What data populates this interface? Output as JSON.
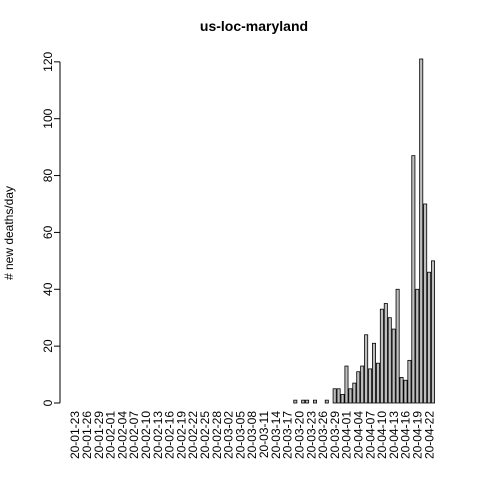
{
  "chart_data": {
    "type": "bar",
    "title": "us-loc-maryland",
    "y_label": "# new deaths/day",
    "categories": [
      "20-01-23",
      null,
      null,
      "20-01-26",
      null,
      null,
      "20-01-29",
      null,
      null,
      "20-02-01",
      null,
      null,
      "20-02-04",
      null,
      null,
      "20-02-07",
      null,
      null,
      "20-02-10",
      null,
      null,
      "20-02-13",
      null,
      null,
      "20-02-16",
      null,
      null,
      "20-02-19",
      null,
      null,
      "20-02-22",
      null,
      null,
      "20-02-25",
      null,
      null,
      "20-02-28",
      null,
      null,
      "20-03-02",
      null,
      null,
      "20-03-05",
      null,
      null,
      "20-03-08",
      null,
      null,
      "20-03-11",
      null,
      null,
      "20-03-14",
      null,
      null,
      "20-03-17",
      null,
      null,
      "20-03-20",
      null,
      null,
      "20-03-23",
      null,
      null,
      "20-03-26",
      null,
      null,
      "20-03-29",
      null,
      null,
      "20-04-01",
      null,
      null,
      "20-04-04",
      null,
      null,
      "20-04-07",
      null,
      null,
      "20-04-10",
      null,
      null,
      "20-04-13",
      null,
      null,
      "20-04-16",
      null,
      null,
      "20-04-19",
      null,
      null,
      "20-04-22",
      null
    ],
    "values": [
      0,
      0,
      0,
      0,
      0,
      0,
      0,
      0,
      0,
      0,
      0,
      0,
      0,
      0,
      0,
      0,
      0,
      0,
      0,
      0,
      0,
      0,
      0,
      0,
      0,
      0,
      0,
      0,
      0,
      0,
      0,
      0,
      0,
      0,
      0,
      0,
      0,
      0,
      0,
      0,
      0,
      0,
      0,
      0,
      0,
      0,
      0,
      0,
      0,
      0,
      0,
      0,
      0,
      0,
      0,
      0,
      1,
      0,
      1,
      1,
      0,
      1,
      0,
      0,
      1,
      0,
      5,
      5,
      3,
      13,
      5,
      7,
      11,
      13,
      24,
      12,
      21,
      14,
      33,
      35,
      30,
      26,
      40,
      9,
      8,
      15,
      87,
      40,
      121,
      70,
      46,
      50
    ],
    "color": "#bebebe",
    "ylim": [
      0,
      121
    ],
    "yticks": [
      0,
      20,
      40,
      60,
      80,
      100,
      120
    ]
  }
}
